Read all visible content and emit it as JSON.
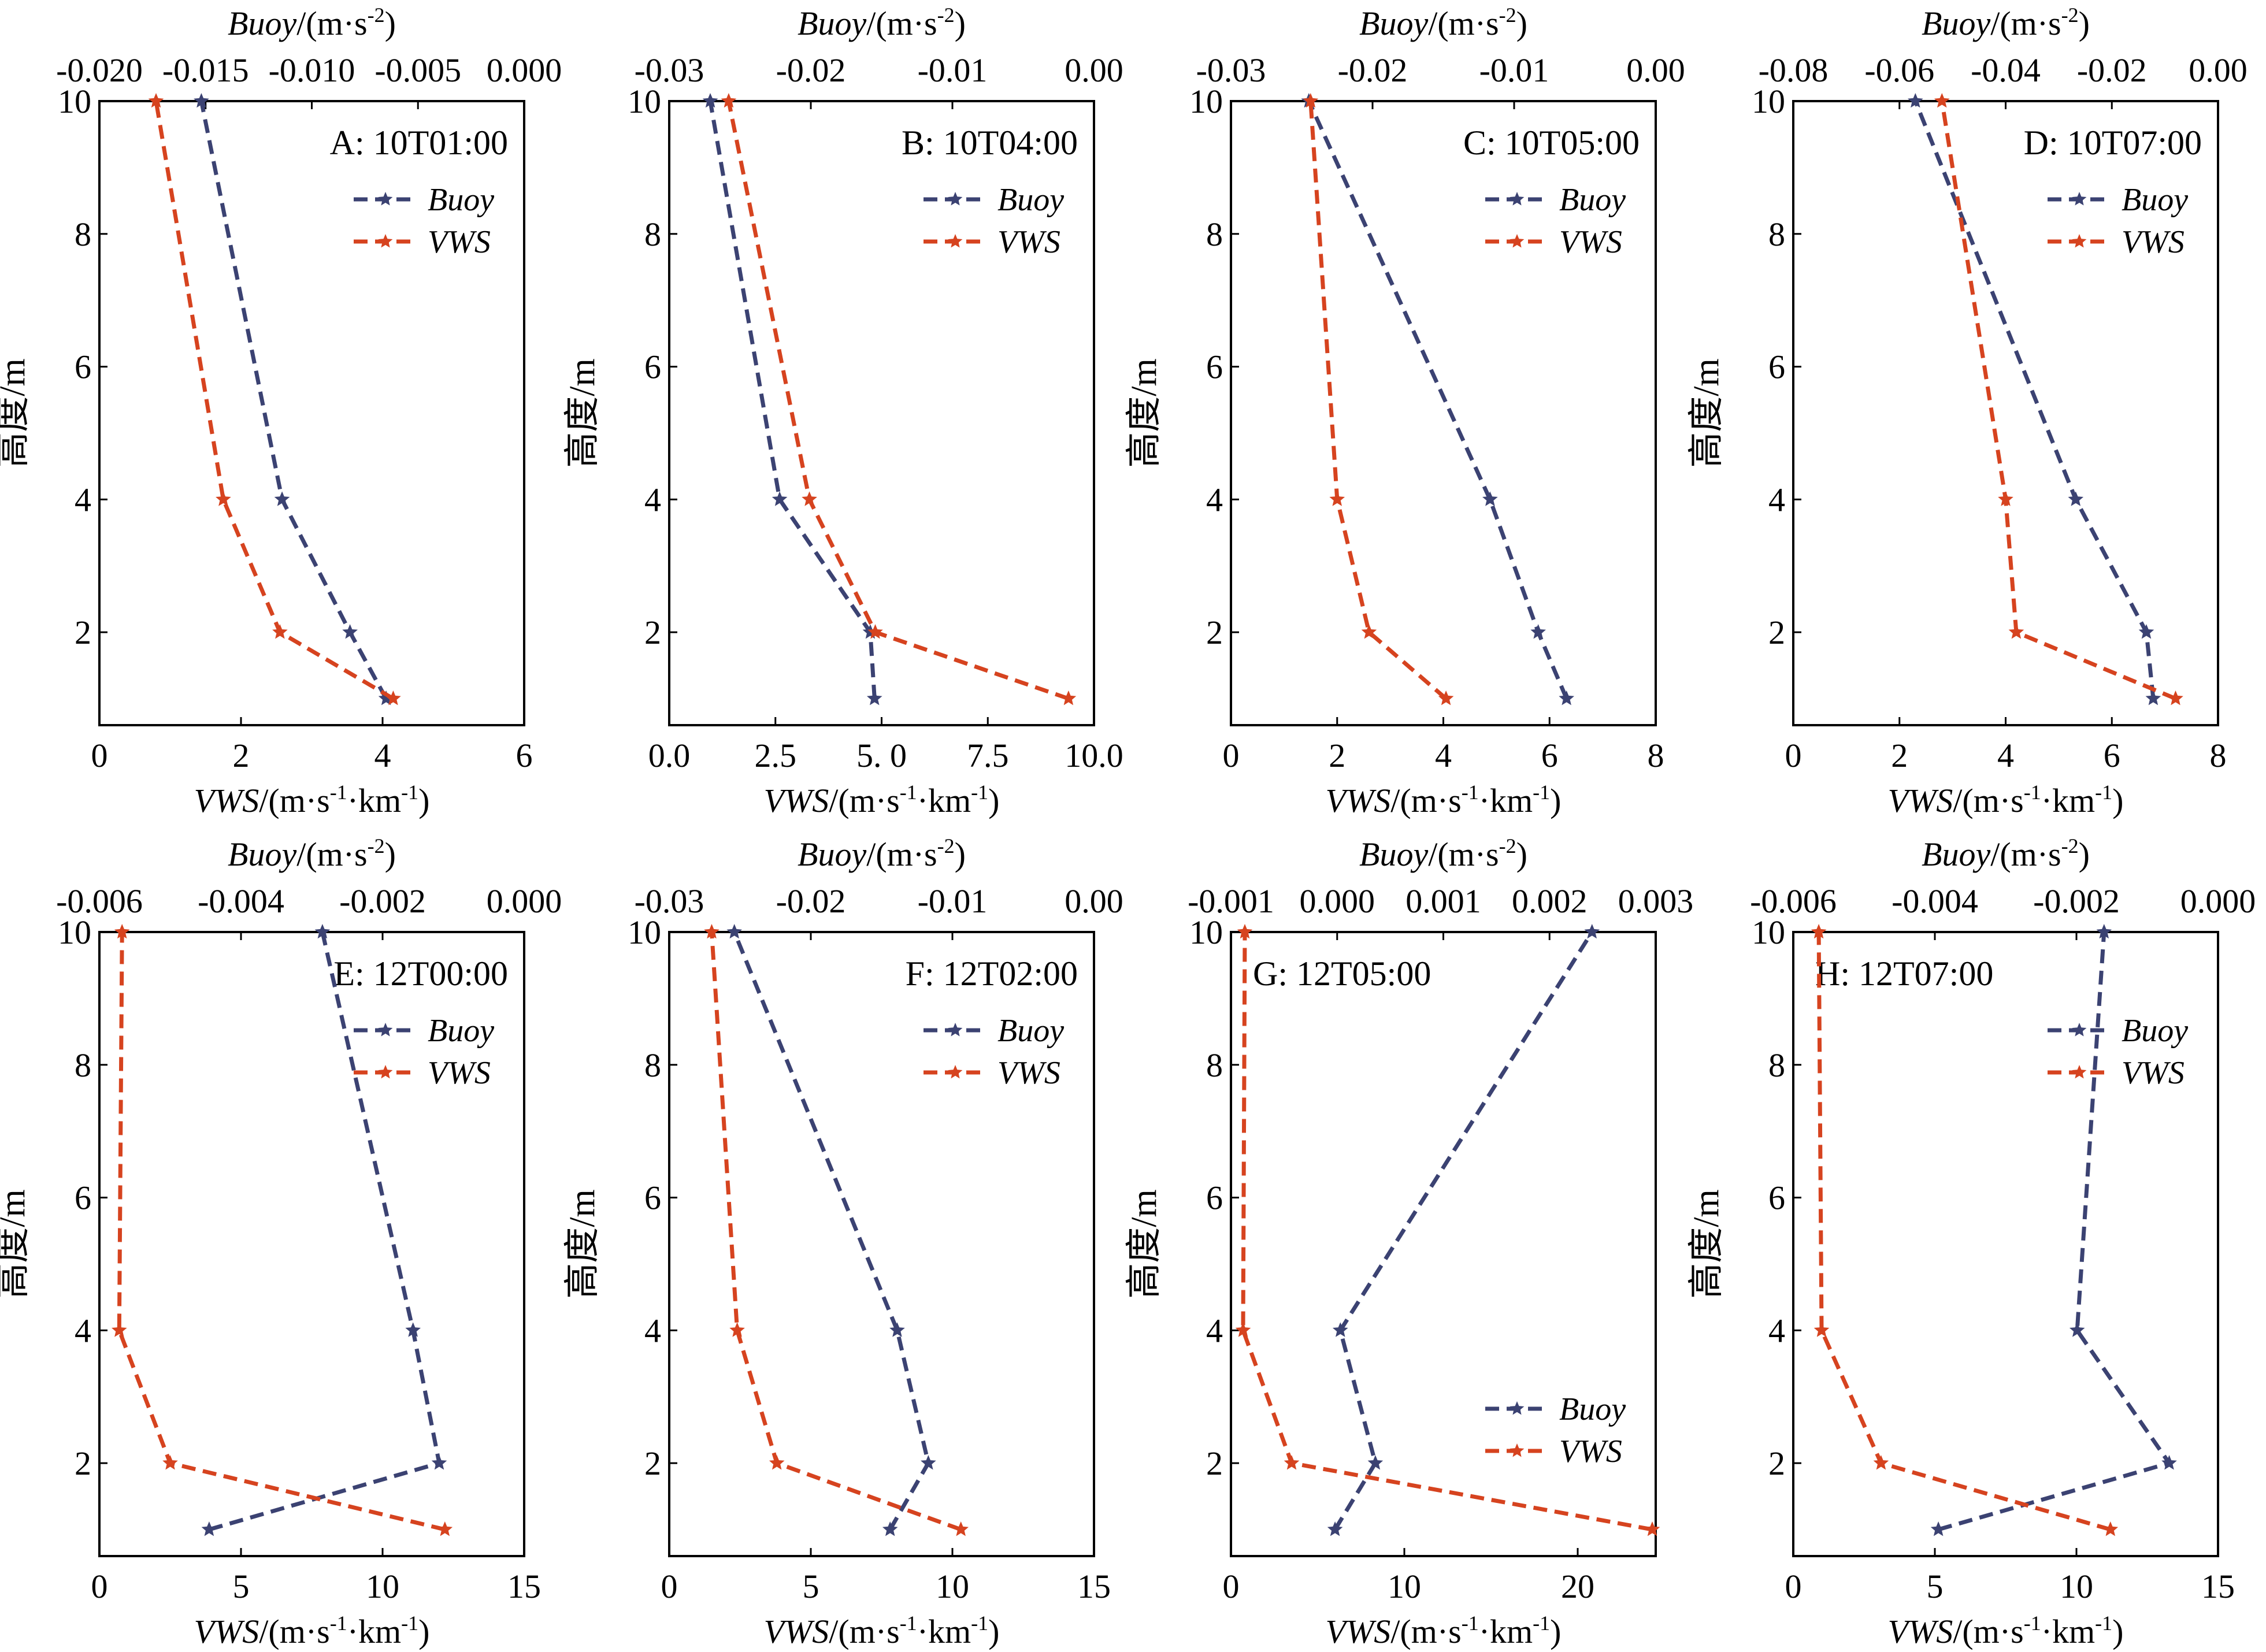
{
  "colors": {
    "buoy": "#3b4272",
    "vws": "#d6431f",
    "axis": "#000000"
  },
  "labels": {
    "ylabel": "高度/m",
    "vws_axis_name": "VWS",
    "vws_axis_units": "/(m·s",
    "vws_sup1": "-1",
    "vws_mid": "·km",
    "vws_sup2": "-1",
    "vws_close": ")",
    "buoy_axis_name": "Buoy",
    "buoy_axis_units": "/(m·s",
    "buoy_sup": "-2",
    "buoy_close": ")",
    "legend_buoy": "Buoy",
    "legend_vws": "VWS"
  },
  "chart_data": [
    {
      "id": "A",
      "title": "A: 10T01:00",
      "type": "line",
      "heights": [
        1,
        2,
        4,
        10
      ],
      "ylim": [
        0.6,
        10
      ],
      "yticks": [
        2,
        4,
        6,
        8,
        10
      ],
      "xlim": [
        0,
        6
      ],
      "xticks": [
        "0",
        "2",
        "4",
        "6"
      ],
      "x2lim": [
        -0.02,
        0.0
      ],
      "x2ticks": [
        "-0.020",
        "-0.015",
        "-0.010",
        "-0.005",
        "0.000"
      ],
      "legend_pos": "top-right",
      "series": [
        {
          "name": "Buoy",
          "axis": "buoy",
          "values": [
            -0.0065,
            -0.0082,
            -0.0114,
            -0.0152
          ]
        },
        {
          "name": "VWS",
          "axis": "vws",
          "values": [
            4.15,
            2.55,
            1.75,
            0.8
          ]
        }
      ]
    },
    {
      "id": "B",
      "title": "B: 10T04:00",
      "type": "line",
      "heights": [
        1,
        2,
        4,
        10
      ],
      "ylim": [
        0.6,
        10
      ],
      "yticks": [
        2,
        4,
        6,
        8,
        10
      ],
      "xlim": [
        0,
        10
      ],
      "xticks": [
        "0.0",
        "2.5",
        "5. 0",
        "7.5",
        "10.0"
      ],
      "x2lim": [
        -0.03,
        0.0
      ],
      "x2ticks": [
        "-0.03",
        "-0.02",
        "-0.01",
        "0.00"
      ],
      "legend_pos": "top-right",
      "series": [
        {
          "name": "Buoy",
          "axis": "buoy",
          "values": [
            -0.0155,
            -0.0158,
            -0.0222,
            -0.0271
          ]
        },
        {
          "name": "VWS",
          "axis": "vws",
          "values": [
            9.4,
            4.85,
            3.3,
            1.4
          ]
        }
      ]
    },
    {
      "id": "C",
      "title": "C: 10T05:00",
      "type": "line",
      "heights": [
        1,
        2,
        4,
        10
      ],
      "ylim": [
        0.6,
        10
      ],
      "yticks": [
        2,
        4,
        6,
        8,
        10
      ],
      "xlim": [
        0,
        8
      ],
      "xticks": [
        "0",
        "2",
        "4",
        "6",
        "8"
      ],
      "x2lim": [
        -0.03,
        0.0
      ],
      "x2ticks": [
        "-0.03",
        "-0.02",
        "-0.01",
        "0.00"
      ],
      "legend_pos": "top-right",
      "series": [
        {
          "name": "Buoy",
          "axis": "buoy",
          "values": [
            -0.0063,
            -0.0083,
            -0.0117,
            -0.0245
          ]
        },
        {
          "name": "VWS",
          "axis": "vws",
          "values": [
            4.05,
            2.6,
            2.0,
            1.5
          ]
        }
      ]
    },
    {
      "id": "D",
      "title": "D: 10T07:00",
      "type": "line",
      "heights": [
        1,
        2,
        4,
        10
      ],
      "ylim": [
        0.6,
        10
      ],
      "yticks": [
        2,
        4,
        6,
        8,
        10
      ],
      "xlim": [
        0,
        8
      ],
      "xticks": [
        "0",
        "2",
        "4",
        "6",
        "8"
      ],
      "x2lim": [
        -0.08,
        0.0
      ],
      "x2ticks": [
        "-0.08",
        "-0.06",
        "-0.04",
        "-0.02",
        "0.00"
      ],
      "legend_pos": "top-right",
      "series": [
        {
          "name": "Buoy",
          "axis": "buoy",
          "values": [
            -0.0122,
            -0.0135,
            -0.0268,
            -0.057
          ]
        },
        {
          "name": "VWS",
          "axis": "vws",
          "values": [
            7.2,
            4.2,
            4.0,
            2.8
          ]
        }
      ]
    },
    {
      "id": "E",
      "title": "E: 12T00:00",
      "type": "line",
      "heights": [
        1,
        2,
        4,
        10
      ],
      "ylim": [
        0.6,
        10
      ],
      "yticks": [
        2,
        4,
        6,
        8,
        10
      ],
      "xlim": [
        0,
        15
      ],
      "xticks": [
        "0",
        "5",
        "10",
        "15"
      ],
      "x2lim": [
        -0.006,
        0.0
      ],
      "x2ticks": [
        "-0.006",
        "-0.004",
        "-0.002",
        "0.000"
      ],
      "legend_pos": "top-right",
      "series": [
        {
          "name": "Buoy",
          "axis": "buoy",
          "values": [
            -0.00445,
            -0.0012,
            -0.00157,
            -0.00285
          ]
        },
        {
          "name": "VWS",
          "axis": "vws",
          "values": [
            12.2,
            2.5,
            0.7,
            0.8
          ]
        }
      ]
    },
    {
      "id": "F",
      "title": "F: 12T02:00",
      "type": "line",
      "heights": [
        1,
        2,
        4,
        10
      ],
      "ylim": [
        0.6,
        10
      ],
      "yticks": [
        2,
        4,
        6,
        8,
        10
      ],
      "xlim": [
        0,
        15
      ],
      "xticks": [
        "0",
        "5",
        "10",
        "15"
      ],
      "x2lim": [
        -0.03,
        0.0
      ],
      "x2ticks": [
        "-0.03",
        "-0.02",
        "-0.01",
        "0.00"
      ],
      "legend_pos": "top-right",
      "series": [
        {
          "name": "Buoy",
          "axis": "buoy",
          "values": [
            -0.0144,
            -0.0117,
            -0.0139,
            -0.0254
          ]
        },
        {
          "name": "VWS",
          "axis": "vws",
          "values": [
            10.3,
            3.8,
            2.4,
            1.5
          ]
        }
      ]
    },
    {
      "id": "G",
      "title": "G: 12T05:00",
      "type": "line",
      "heights": [
        1,
        2,
        4,
        10
      ],
      "ylim": [
        0.6,
        10
      ],
      "yticks": [
        2,
        4,
        6,
        8,
        10
      ],
      "xlim": [
        0,
        24.5
      ],
      "xticks": [
        "0",
        "10",
        "20"
      ],
      "x2lim": [
        -0.001,
        0.003
      ],
      "x2ticks": [
        "-0.001",
        "0.000",
        "0.001",
        "0.002",
        "0.003"
      ],
      "legend_pos": "bottom-right",
      "series": [
        {
          "name": "Buoy",
          "axis": "buoy",
          "values": [
            -2e-05,
            0.00036,
            3e-05,
            0.0024
          ]
        },
        {
          "name": "VWS",
          "axis": "vws",
          "values": [
            24.3,
            3.5,
            0.7,
            0.8
          ]
        }
      ]
    },
    {
      "id": "H",
      "title": "H: 12T07:00",
      "type": "line",
      "heights": [
        1,
        2,
        4,
        10
      ],
      "ylim": [
        0.6,
        10
      ],
      "yticks": [
        2,
        4,
        6,
        8,
        10
      ],
      "xlim": [
        0,
        15
      ],
      "xticks": [
        "0",
        "5",
        "10",
        "15"
      ],
      "x2lim": [
        -0.006,
        0.0
      ],
      "x2ticks": [
        "-0.006",
        "-0.004",
        "-0.002",
        "0.000"
      ],
      "legend_pos": "top-right",
      "series": [
        {
          "name": "Buoy",
          "axis": "buoy",
          "values": [
            -0.00395,
            -0.00069,
            -0.00199,
            -0.00161
          ]
        },
        {
          "name": "VWS",
          "axis": "vws",
          "values": [
            11.2,
            3.1,
            1.0,
            0.9
          ]
        }
      ]
    }
  ]
}
